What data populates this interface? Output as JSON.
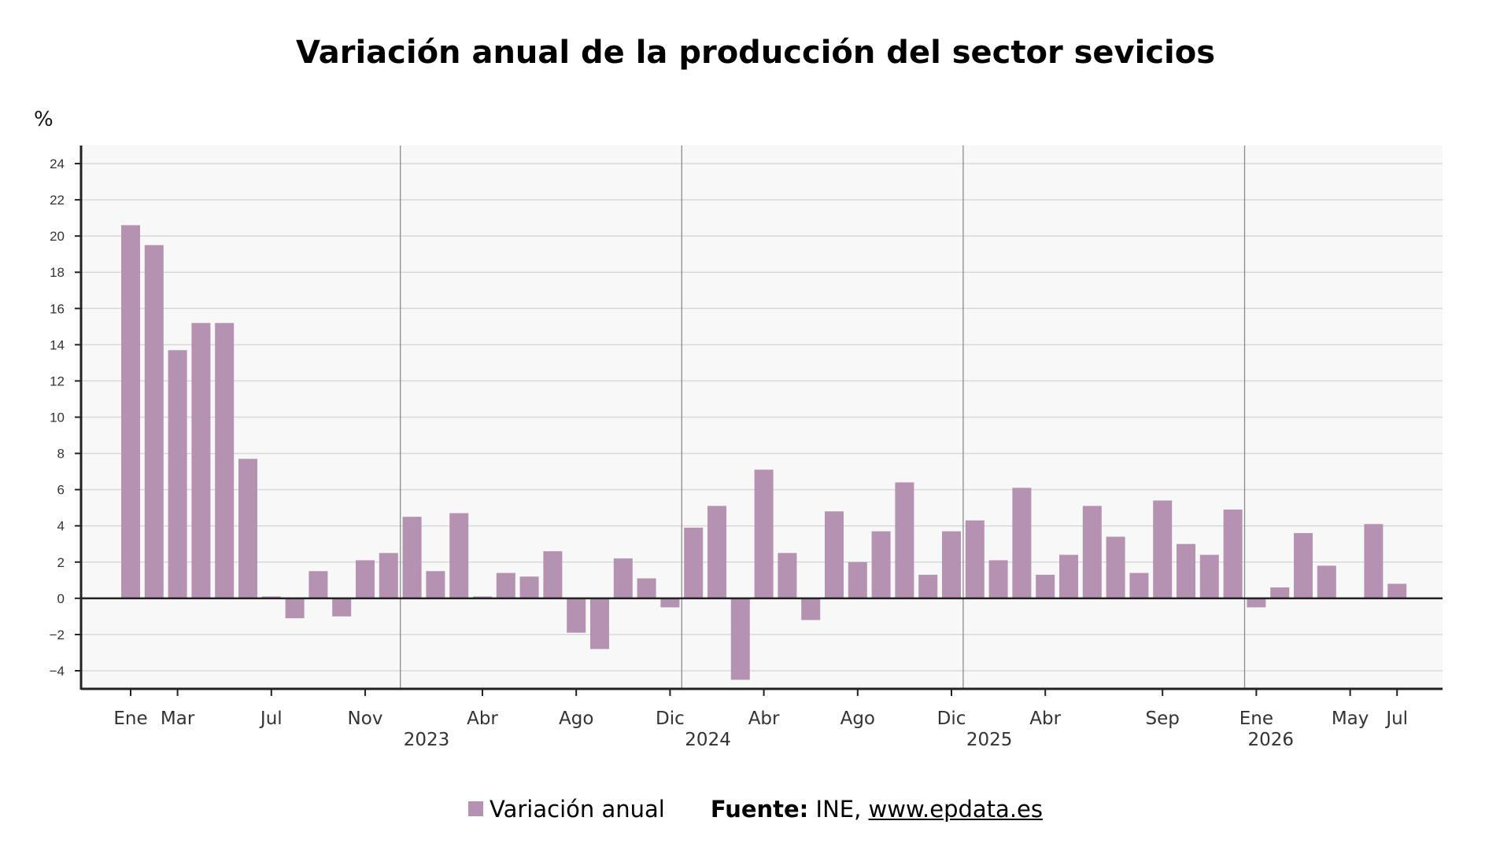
{
  "chart_data": {
    "type": "bar",
    "title": "Variación anual de la producción del sector sevicios",
    "ylabel": "%",
    "ylim": [
      -5,
      25
    ],
    "yticks": [
      -4,
      -2,
      0,
      2,
      4,
      6,
      8,
      10,
      12,
      14,
      16,
      18,
      20,
      22,
      24
    ],
    "ytick_labels": [
      "−4",
      "−2",
      "0",
      "2",
      "4",
      "6",
      "8",
      "10",
      "12",
      "14",
      "16",
      "18",
      "20",
      "22",
      "24"
    ],
    "grid": true,
    "bar_color": "#b592b2",
    "categories": [
      "2022-01",
      "2022-02",
      "2022-03",
      "2022-04",
      "2022-05",
      "2022-06",
      "2022-07",
      "2022-08",
      "2022-09",
      "2022-10",
      "2022-11",
      "2022-12",
      "2023-01",
      "2023-02",
      "2023-03",
      "2023-04",
      "2023-05",
      "2023-06",
      "2023-07",
      "2023-08",
      "2023-09",
      "2023-10",
      "2023-11",
      "2023-12",
      "2024-01",
      "2024-02",
      "2024-03",
      "2024-04",
      "2024-05",
      "2024-06",
      "2024-07",
      "2024-08",
      "2024-09",
      "2024-10",
      "2024-11",
      "2024-12",
      "2025-01",
      "2025-02",
      "2025-03",
      "2025-04",
      "2025-05",
      "2025-06",
      "2025-07",
      "2025-08",
      "2025-09",
      "2025-10",
      "2025-11",
      "2025-12",
      "2026-01",
      "2026-02",
      "2026-03",
      "2026-04",
      "2026-05",
      "2026-06",
      "2026-07"
    ],
    "series": [
      {
        "name": "Variación anual",
        "values": [
          20.6,
          19.5,
          13.7,
          15.2,
          15.2,
          7.7,
          0.1,
          -1.1,
          1.5,
          -1.0,
          2.1,
          2.5,
          4.5,
          1.5,
          4.7,
          0.1,
          1.4,
          1.2,
          2.6,
          -1.9,
          -2.8,
          2.2,
          1.1,
          -0.5,
          3.9,
          5.1,
          -4.5,
          7.1,
          2.5,
          -1.2,
          4.8,
          2.0,
          3.7,
          6.4,
          1.3,
          3.7,
          4.3,
          2.1,
          6.1,
          1.3,
          2.4,
          5.1,
          3.4,
          1.4,
          5.4,
          3.0,
          2.4,
          4.9,
          -0.5,
          0.6,
          3.6,
          1.8,
          0.0,
          4.1,
          0.8
        ]
      }
    ],
    "x_tick_labels": [
      {
        "at": "2022-01",
        "label": "Ene"
      },
      {
        "at": "2022-03",
        "label": "Mar"
      },
      {
        "at": "2022-07",
        "label": "Jul"
      },
      {
        "at": "2022-11",
        "label": "Nov"
      },
      {
        "at": "2023-04",
        "label": "Abr"
      },
      {
        "at": "2023-08",
        "label": "Ago"
      },
      {
        "at": "2023-12",
        "label": "Dic"
      },
      {
        "at": "2024-04",
        "label": "Abr"
      },
      {
        "at": "2024-08",
        "label": "Ago"
      },
      {
        "at": "2024-12",
        "label": "Dic"
      },
      {
        "at": "2025-04",
        "label": "Abr"
      },
      {
        "at": "2025-09",
        "label": "Sep"
      },
      {
        "at": "2026-01",
        "label": "Ene"
      },
      {
        "at": "2026-05",
        "label": "May"
      },
      {
        "at": "2026-07",
        "label": "Jul"
      }
    ],
    "year_separators": [
      {
        "at": "2023-01",
        "label": "2023"
      },
      {
        "at": "2024-01",
        "label": "2024"
      },
      {
        "at": "2025-01",
        "label": "2025"
      },
      {
        "at": "2026-01",
        "label": "2026"
      }
    ],
    "legend_placement": "bottom-center"
  },
  "legend": {
    "label": "Variación anual",
    "color": "#b592b2"
  },
  "source": {
    "prefix": "Fuente:",
    "text": " INE, ",
    "link": "www.epdata.es"
  }
}
